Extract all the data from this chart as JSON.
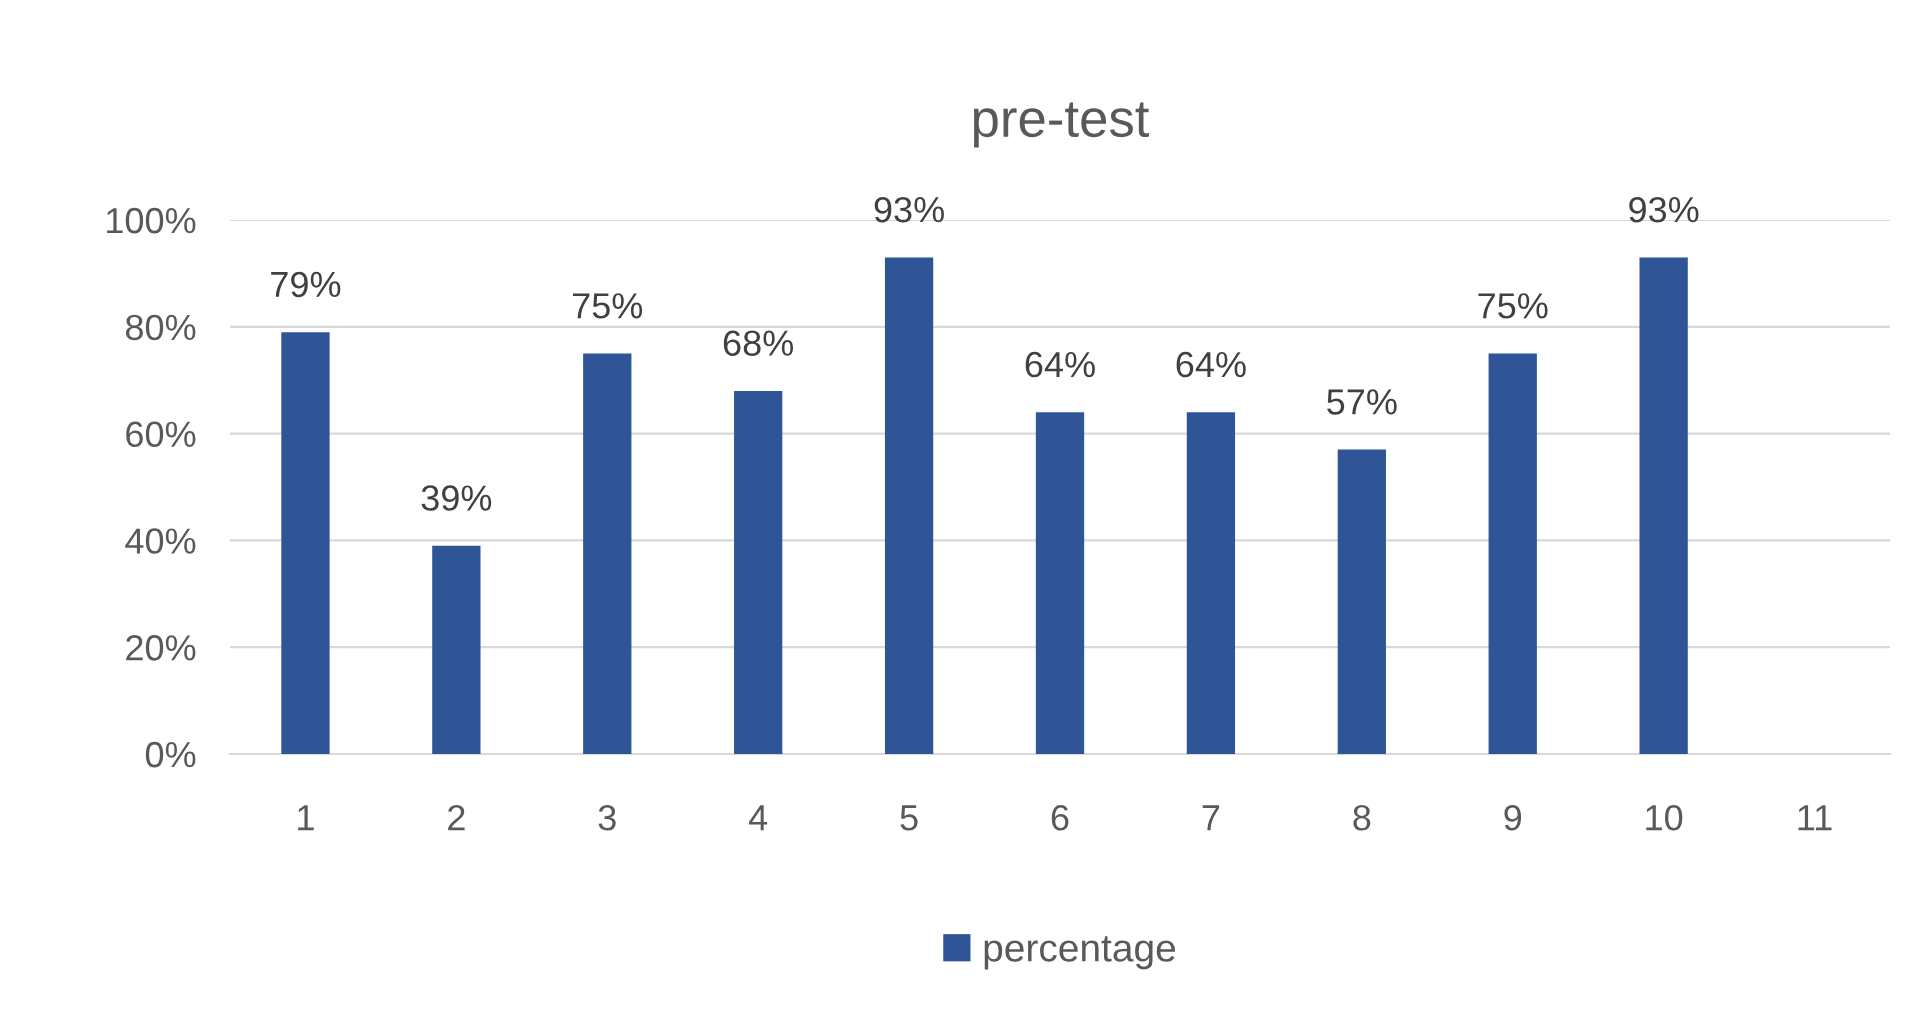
{
  "chart_data": {
    "type": "bar",
    "title": "pre-test",
    "categories": [
      "1",
      "2",
      "3",
      "4",
      "5",
      "6",
      "7",
      "8",
      "9",
      "10",
      "11"
    ],
    "series": [
      {
        "name": "percentage",
        "color": "#2f5597",
        "values": [
          79,
          39,
          75,
          68,
          93,
          64,
          64,
          57,
          75,
          93,
          null
        ],
        "value_labels": [
          "79%",
          "39%",
          "75%",
          "68%",
          "93%",
          "64%",
          "64%",
          "57%",
          "75%",
          "93%",
          null
        ]
      }
    ],
    "ylim": [
      0,
      100
    ],
    "yticks": [
      {
        "value": 0,
        "label": "0%"
      },
      {
        "value": 20,
        "label": "20%"
      },
      {
        "value": 40,
        "label": "40%"
      },
      {
        "value": 60,
        "label": "60%"
      },
      {
        "value": 80,
        "label": "80%"
      },
      {
        "value": 100,
        "label": "100%"
      }
    ],
    "grid": "y",
    "legend": "bottom"
  }
}
